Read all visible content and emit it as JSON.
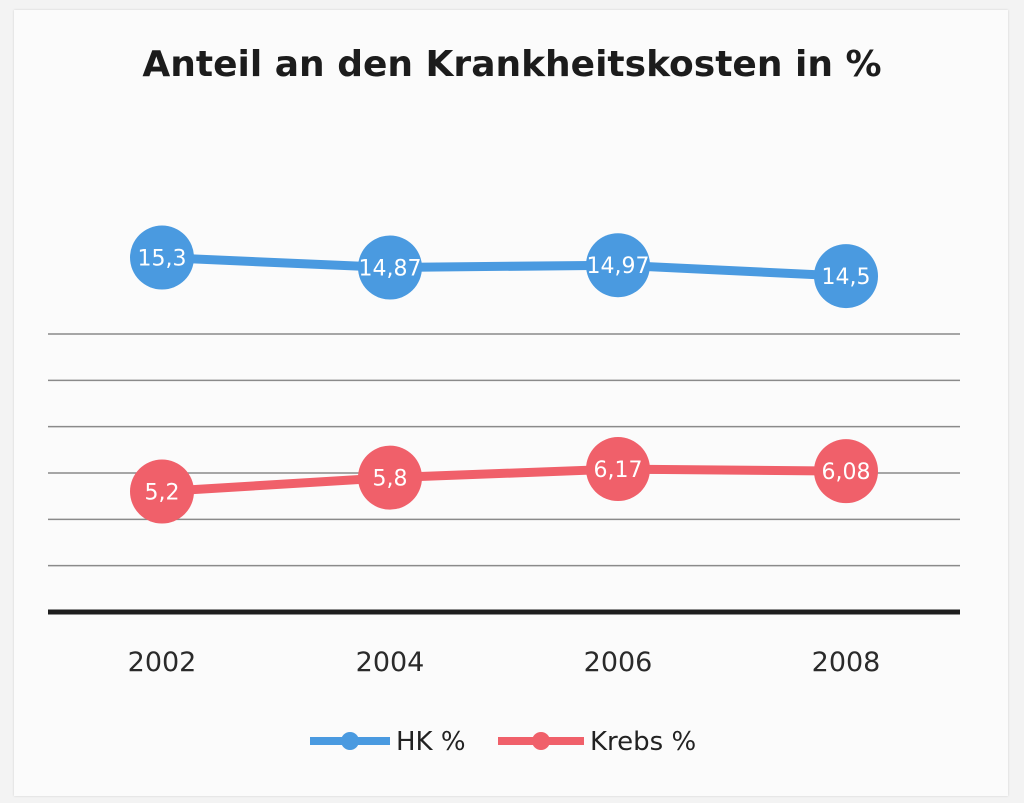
{
  "chart_data": {
    "type": "line",
    "title": "Anteil an den Krankheitskosten in %",
    "categories": [
      "2002",
      "2004",
      "2006",
      "2008"
    ],
    "series": [
      {
        "name": "HK %",
        "color": "#4a9ae0",
        "values": [
          15.3,
          14.87,
          14.97,
          14.5
        ],
        "labels": [
          "15,3",
          "14,87",
          "14,97",
          "14,5"
        ]
      },
      {
        "name": "Krebs %",
        "color": "#f0606a",
        "values": [
          5.2,
          5.8,
          6.17,
          6.08
        ],
        "labels": [
          "5,2",
          "5,8",
          "6,17",
          "6,08"
        ]
      }
    ],
    "ylim": [
      0,
      18
    ],
    "gridlines": [
      2,
      4,
      6,
      8,
      10,
      12
    ],
    "grid": true,
    "legend_position": "bottom",
    "xlabel": "",
    "ylabel": ""
  }
}
